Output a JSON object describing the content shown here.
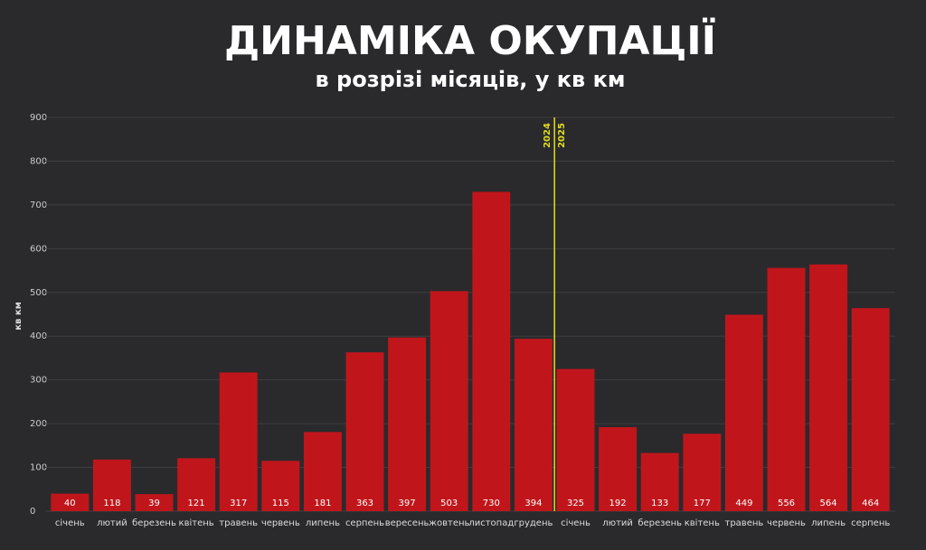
{
  "chart_data": {
    "type": "bar",
    "title": "ДИНАМІКА ОКУПАЦІЇ",
    "subtitle": "в розрізі місяців, у кв км",
    "y_label": "кв км",
    "categories": [
      "січень",
      "лютий",
      "березень",
      "квітень",
      "травень",
      "червень",
      "липень",
      "серпень",
      "вересень",
      "жовтень",
      "листопад",
      "грудень",
      "січень",
      "лютий",
      "березень",
      "квітень",
      "травень",
      "червень",
      "липень",
      "серпень"
    ],
    "values": [
      40,
      118,
      39,
      121,
      317,
      115,
      181,
      363,
      397,
      503,
      730,
      394,
      325,
      192,
      133,
      177,
      449,
      556,
      564,
      464
    ],
    "color": "#c0161b",
    "ylim": [
      0,
      900
    ],
    "yticks": [
      0,
      100,
      200,
      300,
      400,
      500,
      600,
      700,
      800,
      900
    ],
    "grid": true,
    "year_labels": [
      "2024",
      "2025"
    ],
    "divider_color": "#e3dc1e"
  }
}
